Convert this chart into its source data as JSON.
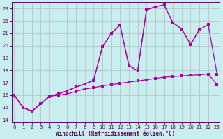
{
  "xlabel": "Windchill (Refroidissement éolien,°C)",
  "background_color": "#c8eef0",
  "grid_color": "#b0b0b0",
  "line_color": "#aa00aa",
  "x_values": [
    0,
    1,
    2,
    3,
    4,
    5,
    6,
    7,
    8,
    9,
    10,
    11,
    12,
    13,
    14,
    15,
    16,
    17,
    18,
    19,
    20,
    21,
    22,
    23
  ],
  "line_flat": [
    16.0,
    15.0,
    14.7,
    15.3,
    15.9,
    16.0,
    16.1,
    16.3,
    16.5,
    16.6,
    16.75,
    16.85,
    16.95,
    17.05,
    17.15,
    17.25,
    17.35,
    17.45,
    17.5,
    17.55,
    17.6,
    17.65,
    17.7,
    16.85
  ],
  "line_peak1_x": [
    0,
    1,
    2,
    3,
    4,
    5,
    6,
    7,
    8,
    9,
    10,
    11,
    12,
    13,
    14,
    15,
    16,
    17,
    18,
    19,
    20,
    21
  ],
  "line_peak1_y": [
    16.0,
    15.0,
    14.7,
    15.3,
    15.9,
    16.1,
    16.35,
    16.65,
    16.9,
    17.2,
    19.9,
    21.0,
    21.65,
    18.4,
    17.95,
    22.9,
    23.15,
    23.3,
    21.85,
    21.35,
    20.1,
    21.3
  ],
  "line_peak2_x": [
    0,
    1,
    2,
    3,
    4,
    5,
    6,
    7,
    8,
    9,
    10,
    11,
    12,
    13,
    14,
    15,
    16,
    17,
    18,
    19,
    20,
    21,
    22,
    23
  ],
  "line_peak2_y": [
    16.0,
    15.0,
    14.7,
    15.3,
    15.9,
    16.1,
    16.35,
    16.65,
    16.9,
    17.2,
    19.9,
    21.0,
    21.65,
    18.4,
    17.95,
    22.9,
    23.15,
    23.3,
    21.85,
    21.35,
    20.1,
    21.3,
    21.7,
    17.7
  ],
  "ylim_min": 13.8,
  "ylim_max": 23.5,
  "xlim_min": -0.3,
  "xlim_max": 23.3
}
